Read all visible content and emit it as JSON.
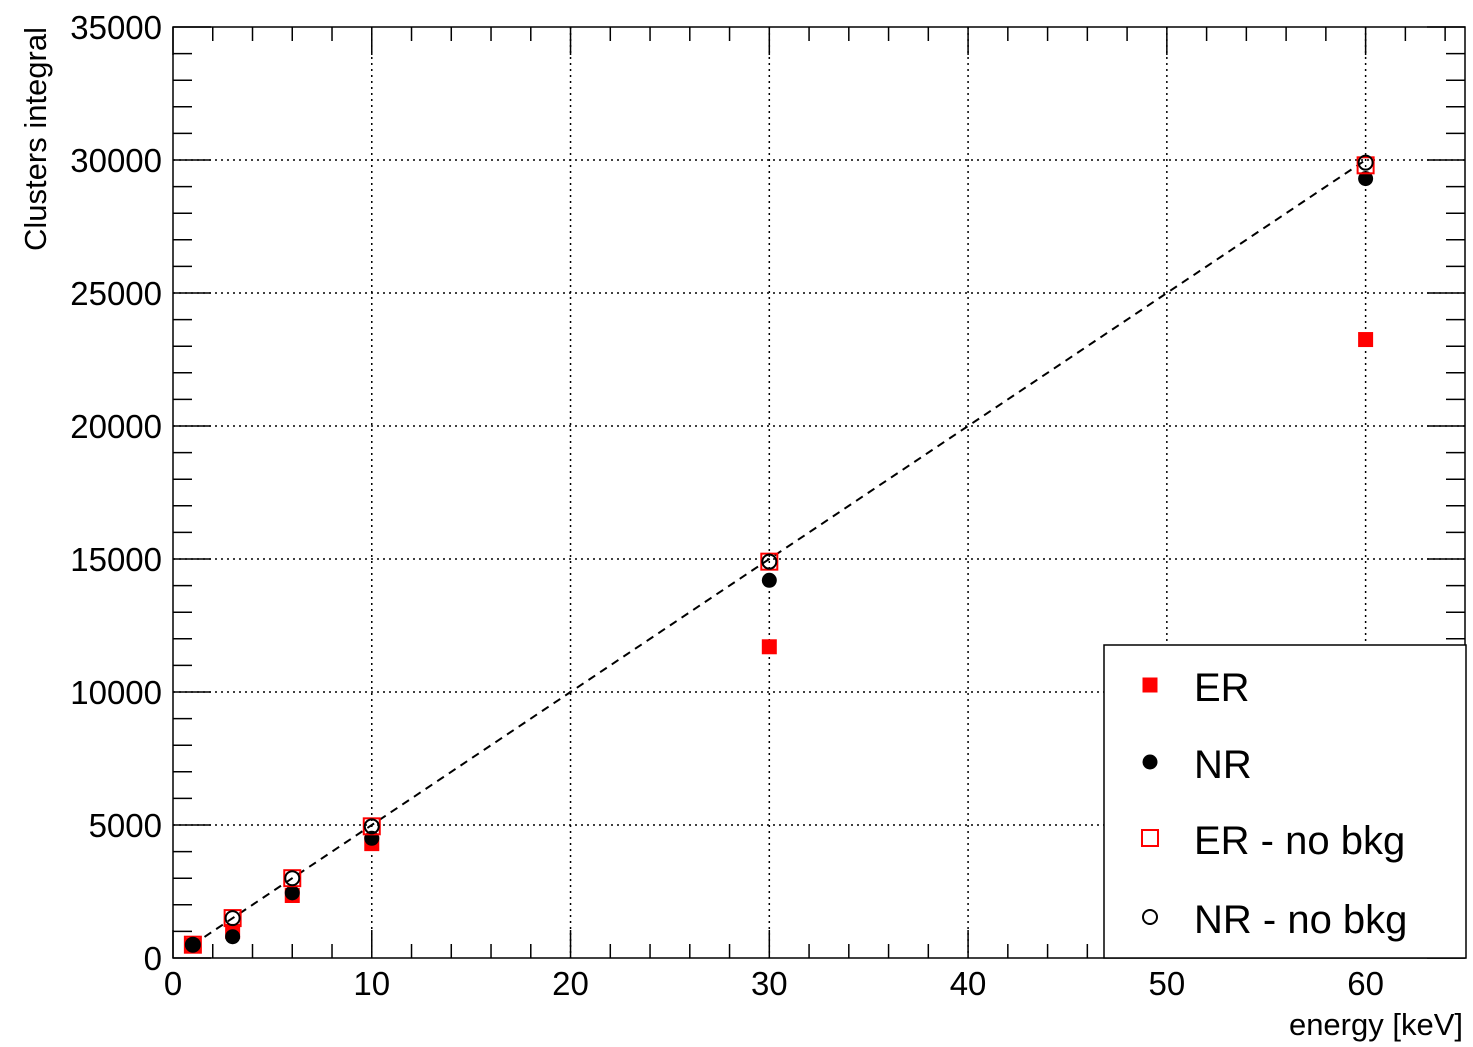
{
  "chart_data": {
    "type": "scatter",
    "title": "",
    "xlabel": "energy [keV]",
    "ylabel": "Clusters integral",
    "xlim": [
      0,
      65
    ],
    "ylim": [
      0,
      35000
    ],
    "x_ticks": [
      0,
      10,
      20,
      30,
      40,
      50,
      60
    ],
    "y_ticks": [
      0,
      5000,
      10000,
      15000,
      20000,
      25000,
      30000,
      35000
    ],
    "x_tick_labels": [
      "0",
      "10",
      "20",
      "30",
      "40",
      "50",
      "60"
    ],
    "y_tick_labels": [
      "0",
      "5000",
      "10000",
      "15000",
      "20000",
      "25000",
      "30000",
      "35000"
    ],
    "grid": true,
    "legend_position": "bottom-right",
    "series": [
      {
        "name": "ER",
        "marker": "filled-square",
        "color": "#ff0000",
        "x": [
          1,
          3,
          6,
          10,
          30,
          60
        ],
        "y": [
          480,
          1000,
          2350,
          4300,
          11700,
          23250
        ]
      },
      {
        "name": "NR",
        "marker": "filled-circle",
        "color": "#000000",
        "x": [
          1,
          3,
          6,
          10,
          30,
          60
        ],
        "y": [
          490,
          800,
          2450,
          4500,
          14200,
          29300
        ]
      },
      {
        "name": "ER - no bkg",
        "marker": "open-square",
        "color": "#ff0000",
        "x": [
          1,
          3,
          6,
          10,
          30,
          60
        ],
        "y": [
          500,
          1500,
          3000,
          4950,
          14900,
          29800
        ]
      },
      {
        "name": "NR - no bkg",
        "marker": "open-circle",
        "color": "#000000",
        "x": [
          1,
          3,
          6,
          10,
          30,
          60
        ],
        "y": [
          500,
          1500,
          3000,
          4950,
          14900,
          29900
        ]
      }
    ],
    "reference_line": {
      "style": "dashed",
      "color": "#000000",
      "x": [
        1,
        60
      ],
      "y": [
        500,
        30000
      ]
    }
  }
}
